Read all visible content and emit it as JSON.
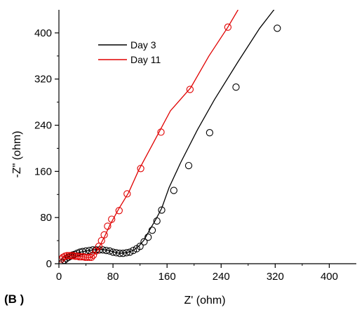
{
  "chart_data": {
    "type": "line",
    "panel_label": "(B )",
    "xlabel": "Z' (ohm)",
    "ylabel": "-Z\" (ohm)",
    "xlim": [
      0,
      440
    ],
    "ylim": [
      0,
      440
    ],
    "xticks": [
      0,
      80,
      160,
      240,
      320,
      400
    ],
    "yticks": [
      0,
      80,
      160,
      240,
      320,
      400
    ],
    "legend_position": "top-left",
    "series": [
      {
        "name": "Day 3",
        "color": "#000000",
        "line": [
          [
            5,
            2
          ],
          [
            10,
            9
          ],
          [
            18,
            15
          ],
          [
            28,
            19
          ],
          [
            40,
            22
          ],
          [
            52,
            24
          ],
          [
            64,
            24.5
          ],
          [
            74,
            23
          ],
          [
            82,
            20
          ],
          [
            90,
            18
          ],
          [
            100,
            19
          ],
          [
            110,
            23
          ],
          [
            118,
            30
          ],
          [
            126,
            41
          ],
          [
            134,
            58
          ],
          [
            143,
            76
          ],
          [
            152,
            96
          ],
          [
            163,
            132
          ],
          [
            180,
            175
          ],
          [
            205,
            232
          ],
          [
            230,
            284
          ],
          [
            265,
            350
          ],
          [
            297,
            408
          ],
          [
            328,
            455
          ],
          [
            352,
            490
          ]
        ],
        "markers": [
          [
            5,
            2
          ],
          [
            8,
            6
          ],
          [
            11,
            9
          ],
          [
            14,
            11
          ],
          [
            17,
            13
          ],
          [
            20,
            15
          ],
          [
            23,
            16
          ],
          [
            27,
            18
          ],
          [
            31,
            20
          ],
          [
            35,
            21
          ],
          [
            40,
            22
          ],
          [
            45,
            23
          ],
          [
            50,
            24
          ],
          [
            55,
            24
          ],
          [
            60,
            24
          ],
          [
            65,
            24
          ],
          [
            70,
            23
          ],
          [
            75,
            22
          ],
          [
            80,
            20
          ],
          [
            85,
            19
          ],
          [
            90,
            18
          ],
          [
            95,
            18
          ],
          [
            100,
            19
          ],
          [
            105,
            20
          ],
          [
            110,
            23
          ],
          [
            115,
            26
          ],
          [
            120,
            30
          ],
          [
            126,
            38
          ],
          [
            132,
            46
          ],
          [
            138,
            58
          ],
          [
            145,
            74
          ],
          [
            152,
            93
          ],
          [
            170,
            127
          ],
          [
            192,
            170
          ],
          [
            223,
            227
          ],
          [
            262,
            306
          ],
          [
            323,
            408
          ]
        ]
      },
      {
        "name": "Day 11",
        "color": "#e00000",
        "line": [
          [
            4,
            8
          ],
          [
            7,
            12
          ],
          [
            12,
            14
          ],
          [
            18,
            14
          ],
          [
            26,
            13
          ],
          [
            35,
            12
          ],
          [
            42,
            11
          ],
          [
            46,
            11
          ],
          [
            50,
            13
          ],
          [
            55,
            20
          ],
          [
            60,
            30
          ],
          [
            68,
            48
          ],
          [
            75,
            66
          ],
          [
            88,
            94
          ],
          [
            103,
            123
          ],
          [
            118,
            162
          ],
          [
            140,
            210
          ],
          [
            165,
            265
          ],
          [
            195,
            305
          ],
          [
            222,
            360
          ],
          [
            250,
            410
          ],
          [
            265,
            440
          ]
        ],
        "markers": [
          [
            4,
            8
          ],
          [
            6,
            11
          ],
          [
            9,
            13
          ],
          [
            12,
            14
          ],
          [
            15,
            14
          ],
          [
            18,
            14
          ],
          [
            21,
            14
          ],
          [
            24,
            13
          ],
          [
            27,
            13
          ],
          [
            30,
            12
          ],
          [
            33,
            12
          ],
          [
            36,
            12
          ],
          [
            39,
            11
          ],
          [
            42,
            11
          ],
          [
            45,
            11
          ],
          [
            48,
            11
          ],
          [
            51,
            15
          ],
          [
            55,
            22
          ],
          [
            59,
            30
          ],
          [
            63,
            40
          ],
          [
            67,
            50
          ],
          [
            72,
            65
          ],
          [
            78,
            77
          ],
          [
            89,
            92
          ],
          [
            101,
            121
          ],
          [
            121,
            165
          ],
          [
            151,
            228
          ],
          [
            194,
            302
          ],
          [
            250,
            410
          ]
        ]
      }
    ]
  }
}
